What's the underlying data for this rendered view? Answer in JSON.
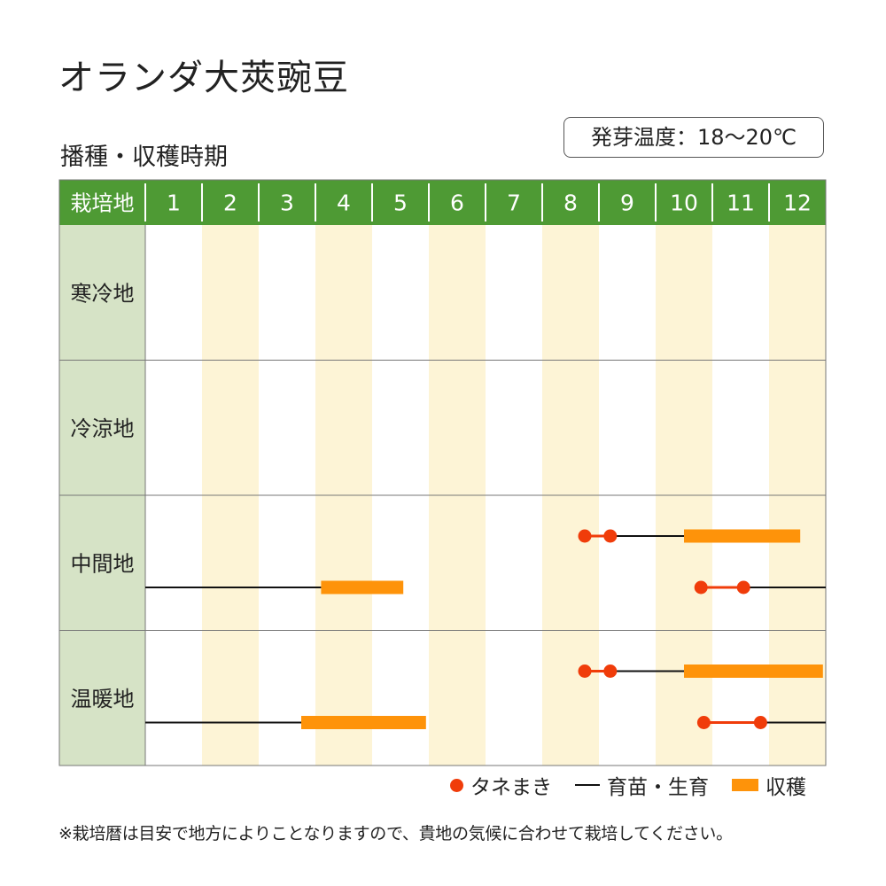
{
  "title": "オランダ大莢豌豆",
  "subtitle": "播種・収穫時期",
  "temperature_label": "発芽温度：18〜20℃",
  "legend": {
    "sowing": "タネまき",
    "growing": "育苗・生育",
    "harvest": "収穫"
  },
  "note": "※栽培暦は目安で地方によりことなりますので、貴地の気候に合わせて栽培してください。",
  "colors": {
    "header_bg": "#4e9a34",
    "region_bg": "#d6e3c6",
    "stripe": "#fdf4d6",
    "sowing": "#f03c0a",
    "growing": "#111111",
    "harvest": "#fe930a"
  },
  "chart_data": {
    "type": "table",
    "header_label": "栽培地",
    "months": [
      "1",
      "2",
      "3",
      "4",
      "5",
      "6",
      "7",
      "8",
      "9",
      "10",
      "11",
      "12"
    ],
    "month_range": [
      1,
      13
    ],
    "regions": [
      {
        "name": "寒冷地",
        "rows": []
      },
      {
        "name": "冷涼地",
        "rows": []
      },
      {
        "name": "中間地",
        "rows": [
          {
            "sowing": [
              8.75,
              9.2
            ],
            "growing": [
              [
                9.2,
                10.5
              ]
            ],
            "harvest": [
              [
                10.5,
                12.55
              ]
            ]
          },
          {
            "sowing": [
              10.8,
              11.55
            ],
            "growing": [
              [
                1.0,
                4.1
              ],
              [
                11.55,
                13.0
              ]
            ],
            "harvest": [
              [
                4.1,
                5.55
              ]
            ]
          }
        ]
      },
      {
        "name": "温暖地",
        "rows": [
          {
            "sowing": [
              8.75,
              9.2
            ],
            "growing": [
              [
                9.2,
                10.5
              ]
            ],
            "harvest": [
              [
                10.5,
                12.95
              ]
            ]
          },
          {
            "sowing": [
              10.85,
              11.85
            ],
            "growing": [
              [
                1.0,
                3.75
              ],
              [
                11.85,
                13.0
              ]
            ],
            "harvest": [
              [
                3.75,
                5.95
              ]
            ]
          }
        ]
      }
    ]
  }
}
